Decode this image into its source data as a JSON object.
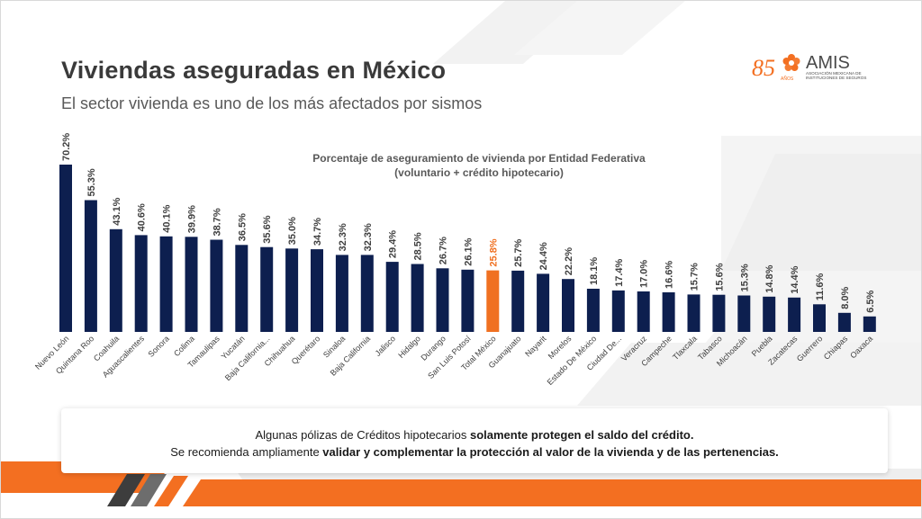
{
  "slide": {
    "title": "Viviendas aseguradas en México",
    "subtitle": "El sector vivienda es uno de los más afectados por sismos"
  },
  "logo": {
    "anniversary_number": "85",
    "anniversary_word": "AÑOS",
    "name": "AMIS",
    "line1": "ASOCIACIÓN MEXICANA DE",
    "line2": "INSTITUCIONES DE SEGUROS"
  },
  "note": {
    "line1_normal": "Algunas pólizas de Créditos hipotecarios ",
    "line1_bold": "solamente protegen el saldo del crédito.",
    "line2_normal": "Se recomienda ampliamente ",
    "line2_bold": "validar y complementar la protección al valor de la vivienda y de las pertenencias."
  },
  "colors": {
    "bar": "#0d1f4f",
    "highlight_bar": "#f07021",
    "accent_orange": "#f36f21",
    "label": "#3f3f3f"
  },
  "chart_data": {
    "type": "bar",
    "title": "Porcentaje de aseguramiento de vivienda por Entidad Federativa",
    "subtitle": "(voluntario + crédito hipotecario)",
    "value_suffix": "%",
    "highlight": "Total México",
    "ylim": [
      0,
      70.2
    ],
    "grid": false,
    "categories": [
      "Nuevo León",
      "Quintana Roo",
      "Coahuila",
      "Aguascalientes",
      "Sonora",
      "Colima",
      "Tamaulipas",
      "Yucatán",
      "Baja California...",
      "Chihuahua",
      "Querétaro",
      "Sinaloa",
      "Baja California",
      "Jalisco",
      "Hidalgo",
      "Durango",
      "San Luis Potosí",
      "Total México",
      "Guanajuato",
      "Nayarit",
      "Morelos",
      "Estado De México",
      "Ciudad De...",
      "Veracruz",
      "Campeche",
      "Tlaxcala",
      "Tabasco",
      "Michoacán",
      "Puebla",
      "Zacatecas",
      "Guerrero",
      "Chiapas",
      "Oaxaca"
    ],
    "values": [
      70.2,
      55.3,
      43.1,
      40.6,
      40.1,
      39.9,
      38.7,
      36.5,
      35.6,
      35.0,
      34.7,
      32.3,
      32.3,
      29.4,
      28.5,
      26.7,
      26.1,
      25.8,
      25.7,
      24.4,
      22.2,
      18.1,
      17.4,
      17.0,
      16.6,
      15.7,
      15.6,
      15.3,
      14.8,
      14.4,
      11.6,
      8.0,
      6.5
    ]
  }
}
